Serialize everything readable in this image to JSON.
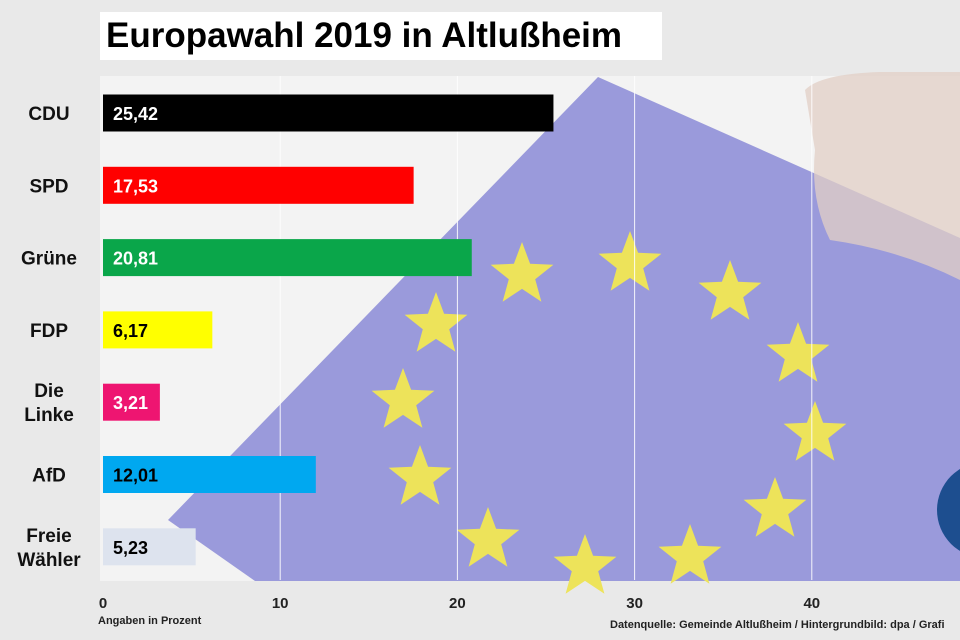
{
  "colors": {
    "CDU": "#000000",
    "SPD": "#ff0000",
    "Grüne": "#0aa64a",
    "FDP": "#ffff00",
    "Die Linke": "#ee1571",
    "AfD": "#00a8f0",
    "Freie Wähler": "#dde3ee",
    "flag": "#8a8ad6",
    "stars": "#ede35a"
  },
  "chart_data": {
    "type": "bar",
    "orientation": "horizontal",
    "title": "Europawahl 2019 in Altlußheim",
    "categories": [
      "CDU",
      "SPD",
      "Grüne",
      "FDP",
      "Die Linke",
      "AfD",
      "Freie Wähler"
    ],
    "category_lines": [
      [
        "CDU"
      ],
      [
        "SPD"
      ],
      [
        "Grüne"
      ],
      [
        "FDP"
      ],
      [
        "Die",
        "Linke"
      ],
      [
        "AfD"
      ],
      [
        "Freie",
        "Wähler"
      ]
    ],
    "values": [
      25.42,
      17.53,
      20.81,
      6.17,
      3.21,
      12.01,
      5.23
    ],
    "value_labels": [
      "25,42",
      "17,53",
      "20,81",
      "6,17",
      "3,21",
      "12,01",
      "5,23"
    ],
    "label_colors": [
      "#ffffff",
      "#ffffff",
      "#ffffff",
      "#000000",
      "#ffffff",
      "#000000",
      "#000000"
    ],
    "x_ticks": [
      0,
      10,
      20,
      30,
      40
    ],
    "xlim": [
      0,
      48
    ],
    "grid": true,
    "unit_note": "Angaben in Prozent",
    "source_note": "Datenquelle: Gemeinde Altlußheim / Hintergrundbild: dpa / Grafi"
  }
}
